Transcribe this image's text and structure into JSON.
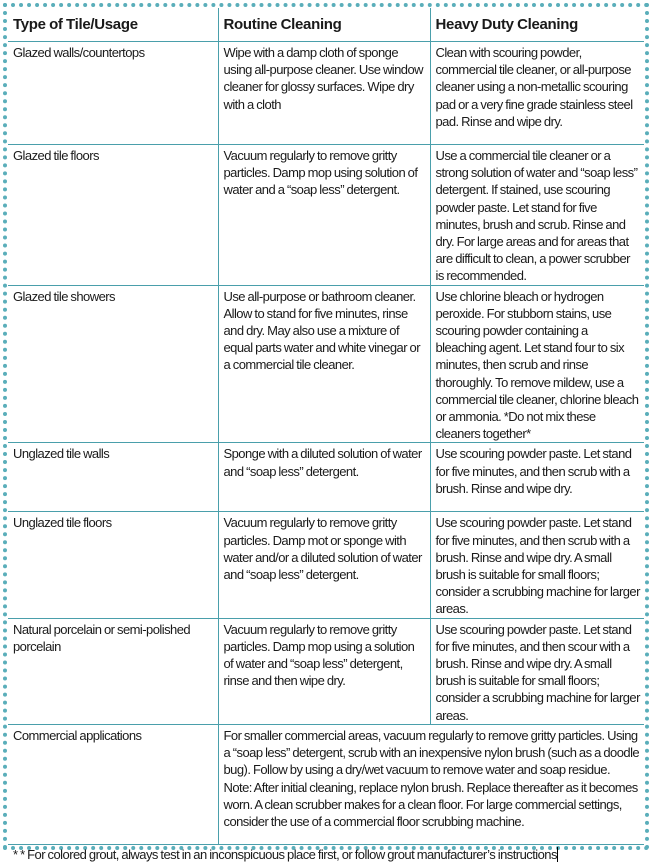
{
  "headers": [
    "Type of Tile/Usage",
    "Routine Cleaning",
    "Heavy Duty Cleaning"
  ],
  "rows": [
    {
      "type": "Glazed walls/countertops",
      "routine": "Wipe with a damp cloth of sponge using all-purpose cleaner. Use window cleaner for glossy surfaces. Wipe dry with a cloth",
      "heavy": "Clean with scouring powder, commercial tile cleaner, or all-purpose cleaner using a non-metallic scouring pad or a very fine grade stainless steel pad. Rinse and wipe dry."
    },
    {
      "type": "Glazed tile floors",
      "routine": "Vacuum regularly to remove gritty particles. Damp mop using solution of water and a “soap less” detergent.",
      "heavy": "Use a commercial tile cleaner or a strong solution of water and “soap less” detergent. If stained, use scouring powder paste. Let stand for five minutes, brush and scrub. Rinse and dry. For large areas and for areas that are difficult to clean, a power scrubber is recommended."
    },
    {
      "type": "Glazed tile showers",
      "routine": "Use all-purpose or bathroom cleaner. Allow to stand for five minutes, rinse and dry. May also use a mixture of equal parts water and white vinegar or a commercial tile cleaner.",
      "heavy": "Use chlorine bleach or hydrogen peroxide. For stubborn stains, use scouring powder containing a bleaching agent. Let stand four to six minutes, then scrub and rinse thoroughly. To remove mildew, use a commercial tile cleaner, chlorine bleach or ammonia. *Do not mix these cleaners together*"
    },
    {
      "type": "Unglazed tile walls",
      "routine": "Sponge with a diluted solution of water and “soap less” detergent.",
      "heavy": "Use scouring powder paste. Let stand for five minutes, and then scrub with a brush. Rinse and wipe dry."
    },
    {
      "type": "Unglazed tile floors",
      "routine": "Vacuum regularly to remove gritty particles. Damp mot or sponge with water and/or a diluted solution of water and “soap less” detergent.",
      "heavy": "Use scouring powder paste. Let stand for five minutes, and then scrub with a brush. Rinse and wipe dry. A small brush is suitable for small floors; consider a scrubbing machine for larger areas."
    },
    {
      "type": "Natural porcelain  or semi-polished porcelain",
      "routine": "Vacuum regularly to remove gritty particles. Damp mop using a solution of water and “soap less” detergent, rinse and then wipe dry.",
      "heavy": "Use scouring powder paste. Let stand for five minutes, and then scour with a brush. Rinse and wipe dry. A small brush is suitable for small floors; consider a scrubbing machine for larger areas."
    }
  ],
  "commercial": {
    "type": "Commercial applications",
    "text": "For smaller commercial areas, vacuum regularly to remove gritty particles. Using a “soap less” detergent, scrub with an inexpensive nylon brush (such as a doodle bug). Follow by using a dry/wet vacuum to  remove water and soap residue. Note: After initial cleaning, replace nylon brush. Replace thereafter as it becomes worn. A clean scrubber makes for a clean floor. For large commercial settings, consider the use of a commercial floor scrubbing machine."
  },
  "footnote": "* * For colored grout, always test in an inconspicuous place first, or follow grout manufacturer’s instructions"
}
